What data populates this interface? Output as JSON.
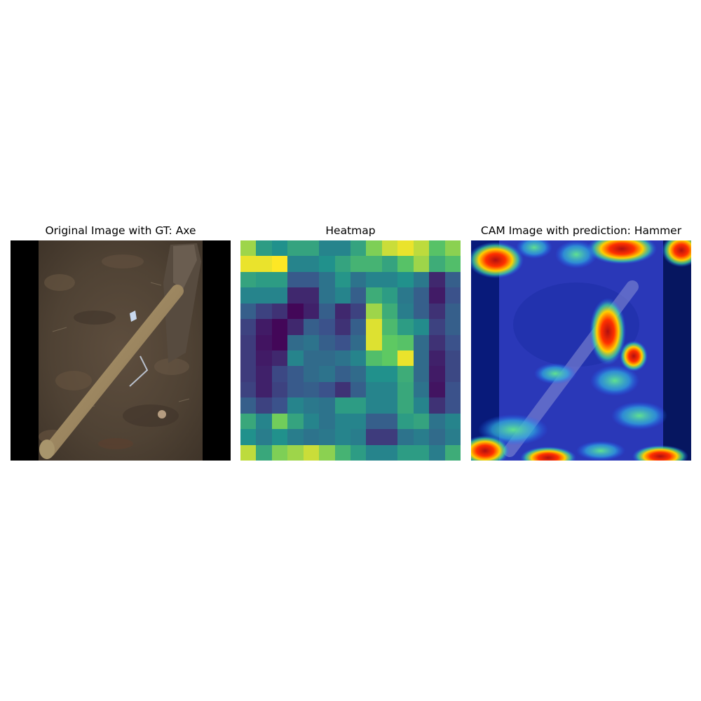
{
  "figure": {
    "panels": [
      {
        "title": "Original Image with GT: Axe"
      },
      {
        "title": "Heatmap"
      },
      {
        "title": "CAM Image with prediction: Hammer"
      }
    ]
  },
  "chart_data": [
    {
      "type": "image",
      "title": "Original Image with GT: Axe"
    },
    {
      "type": "heatmap",
      "title": "Heatmap",
      "colormap": "viridis",
      "values": [
        [
          0.85,
          0.55,
          0.5,
          0.58,
          0.58,
          0.45,
          0.45,
          0.58,
          0.8,
          0.92,
          0.97,
          0.9,
          0.72,
          0.82
        ],
        [
          0.97,
          0.97,
          1.0,
          0.45,
          0.45,
          0.5,
          0.58,
          0.65,
          0.65,
          0.58,
          0.72,
          0.85,
          0.62,
          0.7
        ],
        [
          0.58,
          0.55,
          0.55,
          0.28,
          0.28,
          0.38,
          0.52,
          0.38,
          0.45,
          0.45,
          0.5,
          0.4,
          0.12,
          0.3
        ],
        [
          0.45,
          0.45,
          0.45,
          0.12,
          0.12,
          0.38,
          0.45,
          0.3,
          0.62,
          0.55,
          0.4,
          0.3,
          0.08,
          0.25
        ],
        [
          0.3,
          0.2,
          0.15,
          0.02,
          0.1,
          0.3,
          0.12,
          0.2,
          0.85,
          0.62,
          0.42,
          0.3,
          0.15,
          0.3
        ],
        [
          0.2,
          0.08,
          0.02,
          0.12,
          0.3,
          0.25,
          0.15,
          0.3,
          0.95,
          0.68,
          0.55,
          0.48,
          0.2,
          0.3
        ],
        [
          0.18,
          0.06,
          0.02,
          0.35,
          0.38,
          0.3,
          0.25,
          0.35,
          0.95,
          0.75,
          0.72,
          0.35,
          0.15,
          0.25
        ],
        [
          0.18,
          0.08,
          0.12,
          0.45,
          0.35,
          0.35,
          0.38,
          0.45,
          0.7,
          0.75,
          0.97,
          0.35,
          0.1,
          0.22
        ],
        [
          0.18,
          0.1,
          0.22,
          0.28,
          0.35,
          0.38,
          0.3,
          0.35,
          0.5,
          0.5,
          0.62,
          0.35,
          0.08,
          0.22
        ],
        [
          0.2,
          0.1,
          0.2,
          0.28,
          0.3,
          0.25,
          0.15,
          0.3,
          0.45,
          0.45,
          0.6,
          0.38,
          0.06,
          0.25
        ],
        [
          0.3,
          0.2,
          0.25,
          0.45,
          0.4,
          0.38,
          0.55,
          0.55,
          0.45,
          0.45,
          0.6,
          0.45,
          0.15,
          0.25
        ],
        [
          0.6,
          0.45,
          0.78,
          0.58,
          0.45,
          0.38,
          0.45,
          0.45,
          0.3,
          0.3,
          0.55,
          0.58,
          0.38,
          0.45
        ],
        [
          0.5,
          0.42,
          0.5,
          0.42,
          0.38,
          0.4,
          0.45,
          0.42,
          0.18,
          0.18,
          0.38,
          0.42,
          0.35,
          0.42
        ],
        [
          0.9,
          0.6,
          0.8,
          0.85,
          0.92,
          0.82,
          0.65,
          0.55,
          0.45,
          0.45,
          0.55,
          0.55,
          0.42,
          0.62
        ]
      ]
    },
    {
      "type": "image",
      "title": "CAM Image with prediction: Hammer",
      "colormap": "jet"
    }
  ]
}
